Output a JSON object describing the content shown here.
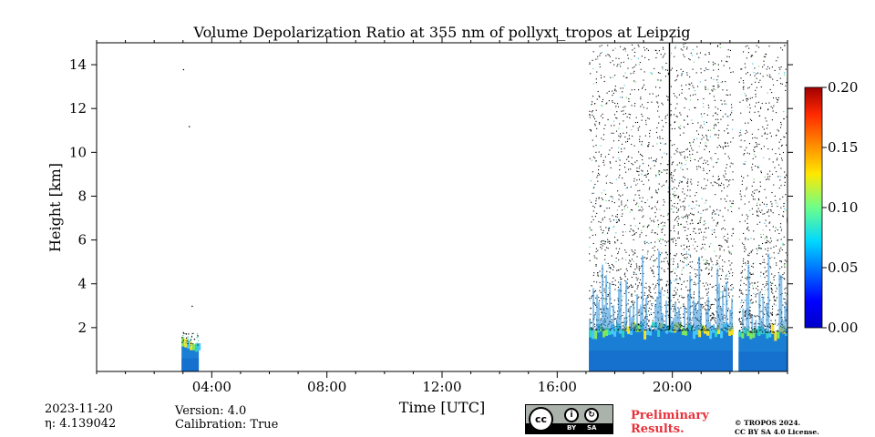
{
  "chart_data": {
    "type": "heatmap",
    "title": "Volume Depolarization Ratio at 355 nm of pollyxt_tropos at Leipzig",
    "xlabel": "Time [UTC]",
    "ylabel": "Height [km]",
    "x_tick_labels": [
      "04:00",
      "08:00",
      "12:00",
      "16:00",
      "20:00"
    ],
    "x_tick_hours": [
      4,
      8,
      12,
      16,
      20
    ],
    "xlim_hours": [
      0,
      24
    ],
    "y_ticks": [
      2,
      4,
      6,
      8,
      10,
      12,
      14
    ],
    "ylim_km": [
      0,
      15
    ],
    "colorbar": {
      "ticks": [
        "0.00",
        "0.05",
        "0.10",
        "0.15",
        "0.20"
      ],
      "range": [
        0,
        0.2
      ],
      "colormap": "jet"
    },
    "features": [
      {
        "start_hour": 2.95,
        "end_hour": 3.55,
        "low_layer_top_km": 1.2,
        "top_km": 1.8
      },
      {
        "start_hour": 17.1,
        "end_hour": 22.1,
        "low_layer_top_km": 1.9,
        "top_km": 15
      },
      {
        "start_hour": 22.3,
        "end_hour": 24.0,
        "low_layer_top_km": 1.8,
        "top_km": 15
      }
    ]
  },
  "footer": {
    "date": "2023-11-20",
    "eta": "η: 4.139042",
    "version": "Version: 4.0",
    "calibration": "Calibration: True",
    "preliminary_line1": "Preliminary",
    "preliminary_line2": "Results.",
    "copyright_line1": "© TROPOS 2024.",
    "copyright_line2": "CC BY SA 4.0 License.",
    "license_badge_label": "cc",
    "license_by": "BY",
    "license_sa": "SA"
  }
}
